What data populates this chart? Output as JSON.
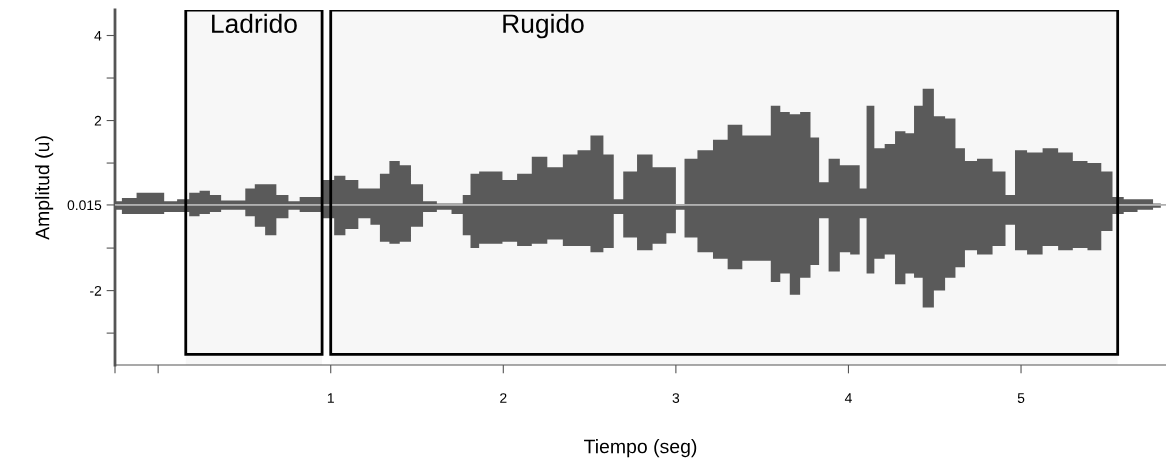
{
  "chart_data": {
    "type": "area",
    "xlabel": "Tiempo (seg)",
    "ylabel": "Amplitud (u)",
    "x": [
      -0.25,
      -0.17,
      -0.08,
      0.0,
      0.07,
      0.15,
      0.21,
      0.27,
      0.33,
      0.4,
      0.48,
      0.53,
      0.59,
      0.65,
      0.72,
      0.79,
      0.85,
      0.92,
      0.99,
      1.05,
      1.12,
      1.2,
      1.26,
      1.31,
      1.37,
      1.43,
      1.5,
      1.57,
      1.66,
      1.74,
      1.79,
      1.83,
      1.89,
      1.95,
      2.04,
      2.12,
      2.21,
      2.3,
      2.39,
      2.47,
      2.54,
      2.62,
      2.66,
      2.73,
      2.82,
      2.91,
      2.98,
      3.02,
      3.08,
      3.17,
      3.26,
      3.34,
      3.43,
      3.52,
      3.58,
      3.63,
      3.69,
      3.75,
      3.81,
      3.85,
      3.92,
      3.98,
      4.04,
      4.09,
      4.12,
      4.18,
      4.24,
      4.3,
      4.36,
      4.4,
      4.46,
      4.53,
      4.59,
      4.65,
      4.7,
      4.79,
      4.88,
      4.94,
      4.99,
      5.08,
      5.17,
      5.26,
      5.34,
      5.43,
      5.5,
      5.56,
      5.63,
      5.72,
      5.81
    ],
    "series": [
      {
        "color": "#5a5a5a",
        "values": [
          0.1,
          0.18,
          0.3,
          0.3,
          0.1,
          0.15,
          0.3,
          0.35,
          0.25,
          0.12,
          0.12,
          0.4,
          0.5,
          0.5,
          0.25,
          0.1,
          0.2,
          0.2,
          0.6,
          0.7,
          0.6,
          0.4,
          0.4,
          0.75,
          1.05,
          0.95,
          0.5,
          0.1,
          0.05,
          0.05,
          0.25,
          0.75,
          0.8,
          0.8,
          0.6,
          0.75,
          1.15,
          0.9,
          1.2,
          1.3,
          1.65,
          1.2,
          0.15,
          0.8,
          1.2,
          0.9,
          0.9,
          0.0,
          1.1,
          1.3,
          1.55,
          1.9,
          1.65,
          1.65,
          2.35,
          2.2,
          2.15,
          2.2,
          1.6,
          0.55,
          1.1,
          0.95,
          0.95,
          0.4,
          2.35,
          1.35,
          1.45,
          1.75,
          1.7,
          2.35,
          2.75,
          2.1,
          2.05,
          1.35,
          1.05,
          1.1,
          0.8,
          0.25,
          1.3,
          1.25,
          1.35,
          1.25,
          1.05,
          1.0,
          0.8,
          0.2,
          0.15,
          0.15,
          0.05
        ]
      },
      {
        "color": "#5a5a5a",
        "values": [
          -0.1,
          -0.2,
          -0.2,
          -0.2,
          -0.15,
          -0.15,
          -0.25,
          -0.2,
          -0.15,
          -0.1,
          -0.1,
          -0.25,
          -0.5,
          -0.7,
          -0.3,
          -0.1,
          -0.15,
          -0.15,
          -0.3,
          -0.7,
          -0.55,
          -0.3,
          -0.45,
          -0.85,
          -0.9,
          -0.85,
          -0.5,
          -0.15,
          -0.1,
          -0.2,
          -0.7,
          -1.0,
          -0.9,
          -0.9,
          -0.85,
          -0.95,
          -0.9,
          -0.8,
          -0.95,
          -0.95,
          -1.1,
          -1.0,
          -0.2,
          -0.75,
          -1.05,
          -0.9,
          -0.65,
          -0.1,
          -0.75,
          -1.1,
          -1.25,
          -1.5,
          -1.3,
          -1.3,
          -1.8,
          -1.6,
          -2.1,
          -1.7,
          -1.4,
          -0.3,
          -1.55,
          -1.1,
          -1.15,
          -0.3,
          -1.6,
          -1.25,
          -1.15,
          -1.85,
          -1.6,
          -1.7,
          -2.4,
          -2.0,
          -1.7,
          -1.45,
          -1.05,
          -1.15,
          -0.95,
          -0.45,
          -1.05,
          -1.15,
          -0.95,
          -1.05,
          -1.0,
          -1.05,
          -0.6,
          -0.2,
          -0.15,
          -0.1,
          -0.05
        ]
      }
    ],
    "xlim": [
      -0.25,
      5.84
    ],
    "ylim": [
      -3.75,
      4.6
    ],
    "xticks": [
      {
        "value": -0.25,
        "label": null
      },
      {
        "value": 0,
        "label": null
      },
      1,
      2,
      3,
      4,
      5
    ],
    "yticks": [
      -2,
      {
        "value": -3,
        "label": null
      },
      {
        "value": -1,
        "label": null
      },
      0.015,
      {
        "value": 1,
        "label": null
      },
      2,
      {
        "value": 3,
        "label": null
      },
      4
    ],
    "ref_lines": [
      {
        "axis": "y",
        "value": 0.015,
        "color": "#b0b0b0"
      }
    ],
    "bands": [
      {
        "axis": "x",
        "from": 0.16,
        "to": 0.95,
        "label": "Ladrido",
        "color": "#000000"
      },
      {
        "axis": "x",
        "from": 1.0,
        "to": 5.56,
        "label": "Rugido",
        "color": "#000000"
      }
    ],
    "grid": false,
    "legend": false
  }
}
